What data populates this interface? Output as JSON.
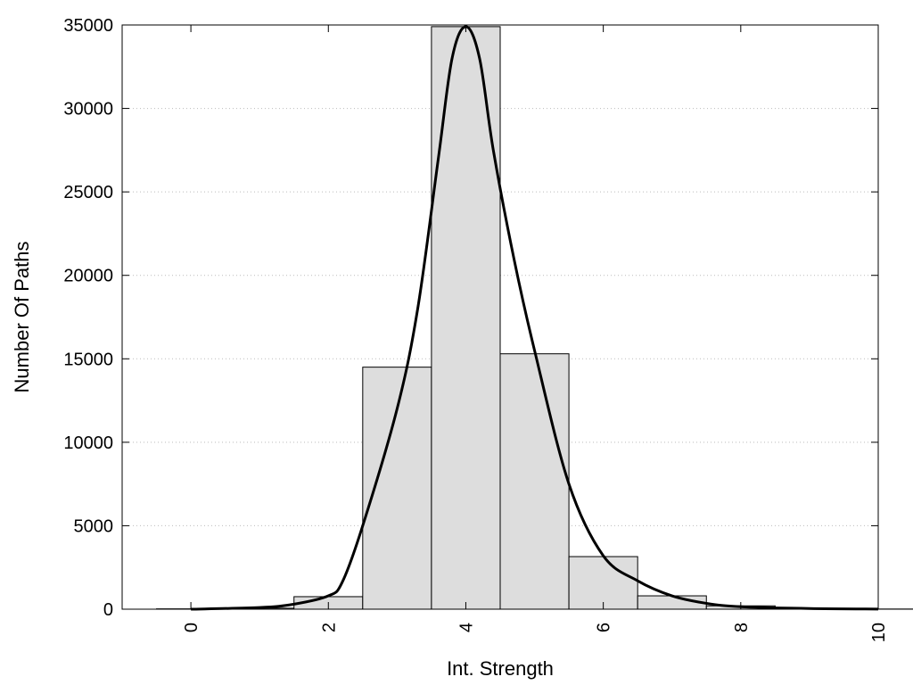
{
  "chart_data": {
    "type": "bar",
    "title": "",
    "xlabel": "Int. Strength",
    "ylabel": "Number Of Paths",
    "xlim": [
      -1,
      10
    ],
    "ylim": [
      0,
      35000
    ],
    "x_ticks": [
      0,
      2,
      4,
      6,
      8,
      10
    ],
    "y_ticks": [
      0,
      5000,
      10000,
      15000,
      20000,
      25000,
      30000,
      35000
    ],
    "grid": "horizontal-dotted",
    "bar_color": "#dddddd",
    "bar_edge_color": "#000000",
    "bars": [
      {
        "x": 0,
        "value": 20
      },
      {
        "x": 1,
        "value": 60
      },
      {
        "x": 2,
        "value": 750
      },
      {
        "x": 3,
        "value": 14500
      },
      {
        "x": 4,
        "value": 34900
      },
      {
        "x": 5,
        "value": 15300
      },
      {
        "x": 6,
        "value": 3150
      },
      {
        "x": 7,
        "value": 800
      },
      {
        "x": 8,
        "value": 200
      },
      {
        "x": 9,
        "value": 40
      },
      {
        "x": 10,
        "value": 10
      }
    ],
    "curve": {
      "color": "#000000",
      "x": [
        0,
        1,
        1.5,
        2,
        2.2,
        2.5,
        3,
        3.3,
        3.6,
        3.8,
        4,
        4.2,
        4.4,
        4.7,
        5,
        5.5,
        6,
        6.5,
        7,
        7.5,
        8,
        9,
        10
      ],
      "y": [
        0,
        100,
        300,
        800,
        1600,
        5000,
        12000,
        18000,
        27000,
        33000,
        34900,
        33000,
        27500,
        21000,
        15500,
        7500,
        3200,
        1700,
        800,
        350,
        150,
        40,
        10
      ]
    }
  }
}
